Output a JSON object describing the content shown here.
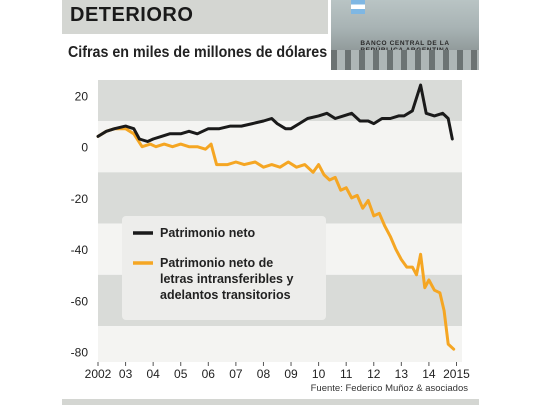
{
  "header": {
    "title": "DETERIORO",
    "subtitle": "Cifras en miles de millones de dólares",
    "photo_caption": "BANCO CENTRAL DE LA REPÚBLICA ARGENTINA"
  },
  "source": "Fuente: Federico Muñoz & asociados",
  "chart_data": {
    "type": "line",
    "xlabel": "",
    "ylabel": "",
    "xlim": [
      2002,
      2015.2
    ],
    "ylim": [
      -84,
      26
    ],
    "yticks": [
      20,
      0,
      -20,
      -40,
      -60,
      -80
    ],
    "xticks": [
      {
        "value": 2002,
        "label": "2002"
      },
      {
        "value": 2003,
        "label": "03"
      },
      {
        "value": 2004,
        "label": "04"
      },
      {
        "value": 2005,
        "label": "05"
      },
      {
        "value": 2006,
        "label": "06"
      },
      {
        "value": 2007,
        "label": "07"
      },
      {
        "value": 2008,
        "label": "08"
      },
      {
        "value": 2009,
        "label": "09"
      },
      {
        "value": 2010,
        "label": "10"
      },
      {
        "value": 2011,
        "label": "11"
      },
      {
        "value": 2012,
        "label": "12"
      },
      {
        "value": 2013,
        "label": "13"
      },
      {
        "value": 2014,
        "label": "14"
      },
      {
        "value": 2015,
        "label": "2015"
      }
    ],
    "legend": "center-left",
    "grid": "alternating horizontal bands",
    "series": [
      {
        "name": "Patrimonio neto",
        "color": "#1a1a1a",
        "points": [
          [
            2002.0,
            4
          ],
          [
            2002.3,
            6
          ],
          [
            2002.6,
            7
          ],
          [
            2003.0,
            8
          ],
          [
            2003.3,
            7
          ],
          [
            2003.5,
            3
          ],
          [
            2003.8,
            2
          ],
          [
            2004.0,
            3
          ],
          [
            2004.3,
            4
          ],
          [
            2004.6,
            5
          ],
          [
            2005.0,
            5
          ],
          [
            2005.3,
            6
          ],
          [
            2005.6,
            5
          ],
          [
            2006.0,
            7
          ],
          [
            2006.4,
            7
          ],
          [
            2006.8,
            8
          ],
          [
            2007.2,
            8
          ],
          [
            2007.6,
            9
          ],
          [
            2008.0,
            10
          ],
          [
            2008.3,
            11
          ],
          [
            2008.5,
            9
          ],
          [
            2008.8,
            7
          ],
          [
            2009.0,
            7
          ],
          [
            2009.3,
            9
          ],
          [
            2009.6,
            11
          ],
          [
            2010.0,
            12
          ],
          [
            2010.3,
            13
          ],
          [
            2010.6,
            11
          ],
          [
            2010.9,
            12
          ],
          [
            2011.2,
            13
          ],
          [
            2011.5,
            10
          ],
          [
            2011.8,
            10
          ],
          [
            2012.0,
            9
          ],
          [
            2012.3,
            11
          ],
          [
            2012.6,
            11
          ],
          [
            2012.9,
            12
          ],
          [
            2013.1,
            12
          ],
          [
            2013.4,
            14
          ],
          [
            2013.7,
            24
          ],
          [
            2013.9,
            13
          ],
          [
            2014.2,
            12
          ],
          [
            2014.5,
            13
          ],
          [
            2014.7,
            11
          ],
          [
            2014.85,
            3
          ]
        ]
      },
      {
        "name": "Patrimonio neto de letras intransferibles y adelantos transitorios",
        "color": "#f5a623",
        "points": [
          [
            2002.0,
            4
          ],
          [
            2002.3,
            6
          ],
          [
            2002.6,
            7
          ],
          [
            2003.0,
            7
          ],
          [
            2003.3,
            5
          ],
          [
            2003.6,
            0
          ],
          [
            2003.9,
            1
          ],
          [
            2004.1,
            0
          ],
          [
            2004.4,
            1
          ],
          [
            2004.7,
            0
          ],
          [
            2005.0,
            1
          ],
          [
            2005.3,
            0
          ],
          [
            2005.6,
            0
          ],
          [
            2005.9,
            -1
          ],
          [
            2006.1,
            1
          ],
          [
            2006.3,
            -7
          ],
          [
            2006.7,
            -7
          ],
          [
            2007.0,
            -6
          ],
          [
            2007.3,
            -7
          ],
          [
            2007.7,
            -6
          ],
          [
            2008.0,
            -8
          ],
          [
            2008.3,
            -7
          ],
          [
            2008.6,
            -8
          ],
          [
            2008.9,
            -6
          ],
          [
            2009.2,
            -8
          ],
          [
            2009.5,
            -7
          ],
          [
            2009.8,
            -10
          ],
          [
            2010.0,
            -7
          ],
          [
            2010.2,
            -11
          ],
          [
            2010.4,
            -13
          ],
          [
            2010.6,
            -12
          ],
          [
            2010.8,
            -17
          ],
          [
            2011.0,
            -16
          ],
          [
            2011.2,
            -20
          ],
          [
            2011.4,
            -19
          ],
          [
            2011.6,
            -24
          ],
          [
            2011.8,
            -21
          ],
          [
            2012.0,
            -27
          ],
          [
            2012.2,
            -26
          ],
          [
            2012.4,
            -31
          ],
          [
            2012.6,
            -35
          ],
          [
            2012.8,
            -40
          ],
          [
            2013.0,
            -44
          ],
          [
            2013.2,
            -47
          ],
          [
            2013.4,
            -47
          ],
          [
            2013.55,
            -50
          ],
          [
            2013.7,
            -42
          ],
          [
            2013.85,
            -55
          ],
          [
            2014.0,
            -52
          ],
          [
            2014.2,
            -56
          ],
          [
            2014.4,
            -57
          ],
          [
            2014.55,
            -64
          ],
          [
            2014.7,
            -77
          ],
          [
            2014.9,
            -79
          ]
        ]
      }
    ]
  }
}
